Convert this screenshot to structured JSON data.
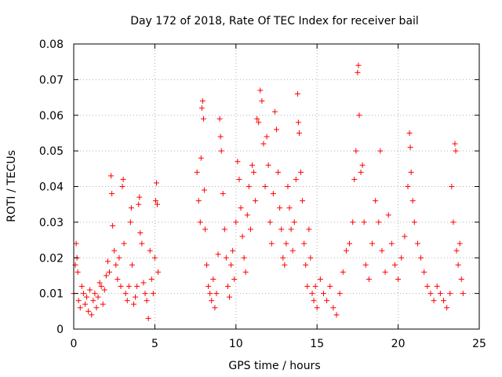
{
  "chart_data": {
    "type": "scatter",
    "title": "Day 172 of 2018, Rate Of TEC Index for receiver bail",
    "xlabel": "GPS time / hours",
    "ylabel": "ROTI / TECUs",
    "xlim": [
      0,
      25
    ],
    "ylim": [
      0,
      0.08
    ],
    "xticks": [
      0,
      5,
      10,
      15,
      20,
      25
    ],
    "xtick_labels": [
      "0",
      "5",
      "10",
      "15",
      "20",
      "25"
    ],
    "yticks": [
      0,
      0.01,
      0.02,
      0.03,
      0.04,
      0.05,
      0.06,
      0.07,
      0.08
    ],
    "ytick_labels": [
      "0",
      "0.01",
      "0.02",
      "0.03",
      "0.04",
      "0.05",
      "0.06",
      "0.07",
      "0.08"
    ],
    "grid": true,
    "marker": "plus",
    "marker_color": "#ff0000",
    "series": [
      {
        "name": "ROTI",
        "points": [
          [
            0.0,
            0.01
          ],
          [
            0.1,
            0.018
          ],
          [
            0.15,
            0.024
          ],
          [
            0.2,
            0.02
          ],
          [
            0.25,
            0.016
          ],
          [
            0.3,
            0.008
          ],
          [
            0.4,
            0.006
          ],
          [
            0.5,
            0.012
          ],
          [
            0.6,
            0.01
          ],
          [
            0.7,
            0.007
          ],
          [
            0.8,
            0.009
          ],
          [
            0.9,
            0.005
          ],
          [
            1.0,
            0.011
          ],
          [
            1.1,
            0.004
          ],
          [
            1.2,
            0.008
          ],
          [
            1.3,
            0.01
          ],
          [
            1.4,
            0.006
          ],
          [
            1.5,
            0.009
          ],
          [
            1.6,
            0.013
          ],
          [
            1.7,
            0.012
          ],
          [
            1.8,
            0.007
          ],
          [
            1.9,
            0.011
          ],
          [
            2.0,
            0.015
          ],
          [
            2.1,
            0.019
          ],
          [
            2.2,
            0.016
          ],
          [
            2.3,
            0.043
          ],
          [
            2.35,
            0.038
          ],
          [
            2.4,
            0.029
          ],
          [
            2.5,
            0.022
          ],
          [
            2.6,
            0.018
          ],
          [
            2.7,
            0.014
          ],
          [
            2.8,
            0.02
          ],
          [
            2.9,
            0.012
          ],
          [
            3.0,
            0.04
          ],
          [
            3.05,
            0.042
          ],
          [
            3.1,
            0.024
          ],
          [
            3.2,
            0.01
          ],
          [
            3.3,
            0.008
          ],
          [
            3.4,
            0.012
          ],
          [
            3.5,
            0.03
          ],
          [
            3.55,
            0.034
          ],
          [
            3.6,
            0.018
          ],
          [
            3.7,
            0.007
          ],
          [
            3.8,
            0.009
          ],
          [
            3.9,
            0.012
          ],
          [
            4.0,
            0.035
          ],
          [
            4.05,
            0.037
          ],
          [
            4.1,
            0.027
          ],
          [
            4.2,
            0.024
          ],
          [
            4.3,
            0.013
          ],
          [
            4.4,
            0.01
          ],
          [
            4.5,
            0.008
          ],
          [
            4.6,
            0.003
          ],
          [
            4.7,
            0.022
          ],
          [
            4.8,
            0.014
          ],
          [
            4.9,
            0.01
          ],
          [
            5.0,
            0.02
          ],
          [
            5.05,
            0.036
          ],
          [
            5.1,
            0.041
          ],
          [
            5.15,
            0.035
          ],
          [
            5.2,
            0.016
          ],
          [
            7.6,
            0.044
          ],
          [
            7.7,
            0.036
          ],
          [
            7.8,
            0.03
          ],
          [
            7.85,
            0.048
          ],
          [
            7.9,
            0.062
          ],
          [
            7.95,
            0.064
          ],
          [
            8.0,
            0.059
          ],
          [
            8.05,
            0.039
          ],
          [
            8.1,
            0.028
          ],
          [
            8.2,
            0.018
          ],
          [
            8.3,
            0.012
          ],
          [
            8.4,
            0.01
          ],
          [
            8.5,
            0.008
          ],
          [
            8.6,
            0.014
          ],
          [
            8.7,
            0.006
          ],
          [
            8.8,
            0.01
          ],
          [
            8.9,
            0.021
          ],
          [
            9.0,
            0.059
          ],
          [
            9.05,
            0.054
          ],
          [
            9.1,
            0.05
          ],
          [
            9.2,
            0.038
          ],
          [
            9.3,
            0.028
          ],
          [
            9.4,
            0.02
          ],
          [
            9.5,
            0.012
          ],
          [
            9.6,
            0.009
          ],
          [
            9.7,
            0.018
          ],
          [
            9.8,
            0.022
          ],
          [
            9.9,
            0.014
          ],
          [
            10.0,
            0.03
          ],
          [
            10.1,
            0.047
          ],
          [
            10.2,
            0.042
          ],
          [
            10.3,
            0.034
          ],
          [
            10.4,
            0.026
          ],
          [
            10.5,
            0.02
          ],
          [
            10.6,
            0.016
          ],
          [
            10.7,
            0.032
          ],
          [
            10.8,
            0.04
          ],
          [
            10.9,
            0.028
          ],
          [
            11.0,
            0.046
          ],
          [
            11.1,
            0.044
          ],
          [
            11.2,
            0.036
          ],
          [
            11.3,
            0.059
          ],
          [
            11.4,
            0.058
          ],
          [
            11.5,
            0.067
          ],
          [
            11.6,
            0.064
          ],
          [
            11.7,
            0.052
          ],
          [
            11.8,
            0.04
          ],
          [
            11.9,
            0.054
          ],
          [
            12.0,
            0.046
          ],
          [
            12.1,
            0.03
          ],
          [
            12.2,
            0.024
          ],
          [
            12.3,
            0.038
          ],
          [
            12.4,
            0.061
          ],
          [
            12.5,
            0.056
          ],
          [
            12.6,
            0.044
          ],
          [
            12.7,
            0.034
          ],
          [
            12.8,
            0.028
          ],
          [
            12.9,
            0.02
          ],
          [
            13.0,
            0.018
          ],
          [
            13.1,
            0.024
          ],
          [
            13.2,
            0.04
          ],
          [
            13.3,
            0.034
          ],
          [
            13.4,
            0.028
          ],
          [
            13.5,
            0.022
          ],
          [
            13.6,
            0.03
          ],
          [
            13.7,
            0.042
          ],
          [
            13.8,
            0.066
          ],
          [
            13.85,
            0.058
          ],
          [
            13.9,
            0.055
          ],
          [
            14.0,
            0.044
          ],
          [
            14.1,
            0.036
          ],
          [
            14.2,
            0.024
          ],
          [
            14.3,
            0.018
          ],
          [
            14.4,
            0.012
          ],
          [
            14.5,
            0.028
          ],
          [
            14.6,
            0.02
          ],
          [
            14.7,
            0.01
          ],
          [
            14.8,
            0.008
          ],
          [
            14.9,
            0.012
          ],
          [
            15.0,
            0.006
          ],
          [
            15.2,
            0.014
          ],
          [
            15.4,
            0.01
          ],
          [
            15.6,
            0.008
          ],
          [
            15.8,
            0.012
          ],
          [
            16.0,
            0.006
          ],
          [
            16.2,
            0.004
          ],
          [
            16.4,
            0.01
          ],
          [
            16.6,
            0.016
          ],
          [
            16.8,
            0.022
          ],
          [
            17.0,
            0.024
          ],
          [
            17.2,
            0.03
          ],
          [
            17.3,
            0.042
          ],
          [
            17.4,
            0.05
          ],
          [
            17.5,
            0.072
          ],
          [
            17.55,
            0.074
          ],
          [
            17.6,
            0.06
          ],
          [
            17.7,
            0.044
          ],
          [
            17.8,
            0.046
          ],
          [
            17.9,
            0.03
          ],
          [
            18.0,
            0.018
          ],
          [
            18.2,
            0.014
          ],
          [
            18.4,
            0.024
          ],
          [
            18.6,
            0.036
          ],
          [
            18.8,
            0.03
          ],
          [
            18.9,
            0.05
          ],
          [
            19.0,
            0.022
          ],
          [
            19.2,
            0.016
          ],
          [
            19.4,
            0.032
          ],
          [
            19.6,
            0.024
          ],
          [
            19.8,
            0.018
          ],
          [
            20.0,
            0.014
          ],
          [
            20.2,
            0.02
          ],
          [
            20.4,
            0.026
          ],
          [
            20.6,
            0.04
          ],
          [
            20.7,
            0.055
          ],
          [
            20.75,
            0.051
          ],
          [
            20.8,
            0.044
          ],
          [
            20.9,
            0.036
          ],
          [
            21.0,
            0.03
          ],
          [
            21.2,
            0.024
          ],
          [
            21.4,
            0.02
          ],
          [
            21.6,
            0.016
          ],
          [
            21.8,
            0.012
          ],
          [
            22.0,
            0.01
          ],
          [
            22.2,
            0.008
          ],
          [
            22.4,
            0.012
          ],
          [
            22.6,
            0.01
          ],
          [
            22.8,
            0.008
          ],
          [
            23.0,
            0.006
          ],
          [
            23.2,
            0.01
          ],
          [
            23.3,
            0.04
          ],
          [
            23.4,
            0.03
          ],
          [
            23.5,
            0.052
          ],
          [
            23.55,
            0.05
          ],
          [
            23.6,
            0.022
          ],
          [
            23.7,
            0.018
          ],
          [
            23.8,
            0.024
          ],
          [
            23.9,
            0.014
          ],
          [
            24.0,
            0.01
          ]
        ]
      }
    ]
  }
}
